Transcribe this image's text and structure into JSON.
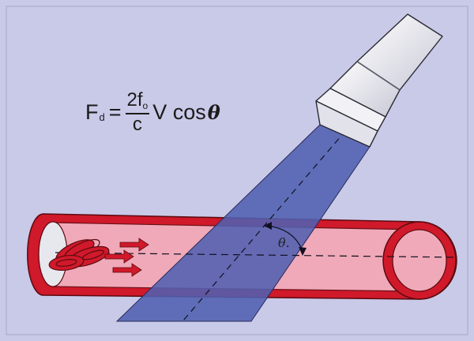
{
  "formula": {
    "lhs": "F",
    "lhs_sub": "d",
    "equals": "=",
    "num_coef": "2f",
    "num_sub": "o",
    "denominator": "c",
    "rest": "V cos",
    "theta": "θ"
  },
  "angle_label": "θ.",
  "colors": {
    "background": "#c9c9e8",
    "vessel_wall": "#d0192a",
    "vessel_lumen": "#f0a9b8",
    "ultrasound_beam": "#5060b0",
    "probe": "#ececf2",
    "red_cells": "#d0192a"
  },
  "icons": [
    "ultrasound-probe-icon",
    "red-blood-cells-icon",
    "flow-arrow-icon"
  ]
}
